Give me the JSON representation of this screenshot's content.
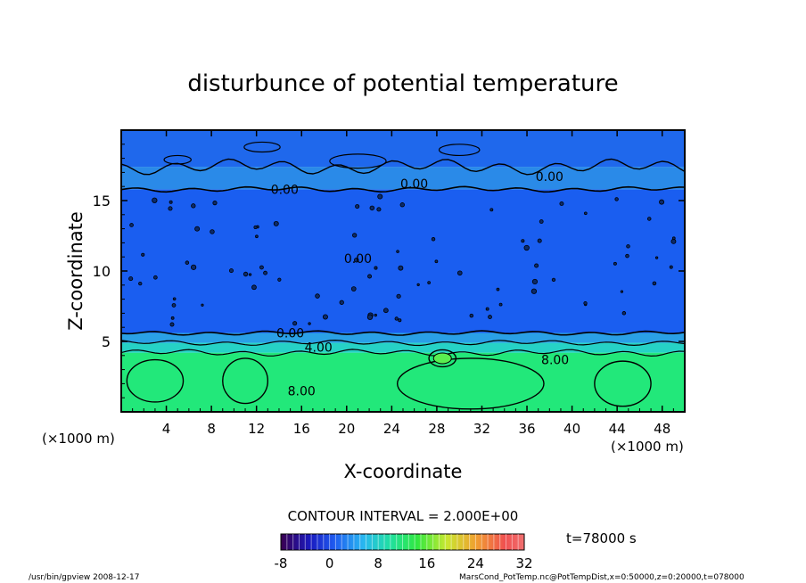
{
  "chart_data": {
    "type": "heatmap",
    "title": "disturbunce of potential temperature",
    "xlabel": "X-coordinate",
    "ylabel": "Z-coordinate",
    "x_unit_label": "(×1000 m)",
    "z_unit_label": "(×1000 m)",
    "xlim": [
      0,
      50
    ],
    "ylim": [
      0,
      20
    ],
    "x_ticks": [
      4,
      8,
      12,
      16,
      20,
      24,
      28,
      32,
      36,
      40,
      44,
      48
    ],
    "y_ticks": [
      5,
      10,
      15
    ],
    "x_tick_labels": [
      "4",
      "8",
      "12",
      "16",
      "20",
      "24",
      "28",
      "32",
      "36",
      "40",
      "44",
      "48"
    ],
    "y_tick_labels": [
      "5",
      "10",
      "15"
    ],
    "contour_interval_label": "CONTOUR INTERVAL = 2.000E+00",
    "time_label": "t=78000 s",
    "colorbar": {
      "min": -8,
      "max": 32,
      "tick_values": [
        -8,
        0,
        8,
        16,
        24,
        32
      ],
      "tick_labels": [
        "-8",
        "0",
        "8",
        "16",
        "24",
        "32"
      ]
    },
    "contour_labels": [
      {
        "text": "0.00",
        "x": 38,
        "z": 16.7
      },
      {
        "text": "0.00",
        "x": 14.5,
        "z": 15.8
      },
      {
        "text": "0.00",
        "x": 26,
        "z": 16.2
      },
      {
        "text": "0.00",
        "x": 21,
        "z": 10.9
      },
      {
        "text": "0.00",
        "x": 15,
        "z": 5.6
      },
      {
        "text": "4.00",
        "x": 17.5,
        "z": 4.6
      },
      {
        "text": "8.00",
        "x": 38.5,
        "z": 3.7
      },
      {
        "text": "8.00",
        "x": 16,
        "z": 1.5
      }
    ],
    "field_bands": [
      {
        "z_from": 0,
        "z_to": 4.2,
        "value": 11,
        "color": "#22e87a"
      },
      {
        "z_from": 4.2,
        "z_to": 4.9,
        "value": 4,
        "color": "#26d2c6"
      },
      {
        "z_from": 4.9,
        "z_to": 5.6,
        "value": 1,
        "color": "#2aa0e6"
      },
      {
        "z_from": 5.6,
        "z_to": 15.8,
        "value": -1,
        "color": "#1a5ef0"
      },
      {
        "z_from": 15.8,
        "z_to": 17.4,
        "value": 0.5,
        "color": "#2a8ae8"
      },
      {
        "z_from": 17.4,
        "z_to": 20,
        "value": -0.5,
        "color": "#1f68ec"
      }
    ]
  },
  "footer": {
    "left": "/usr/bin/gpview   2008-12-17",
    "right": "MarsCond_PotTemp.nc@PotTempDist,x=0:50000,z=0:20000,t=078000"
  }
}
